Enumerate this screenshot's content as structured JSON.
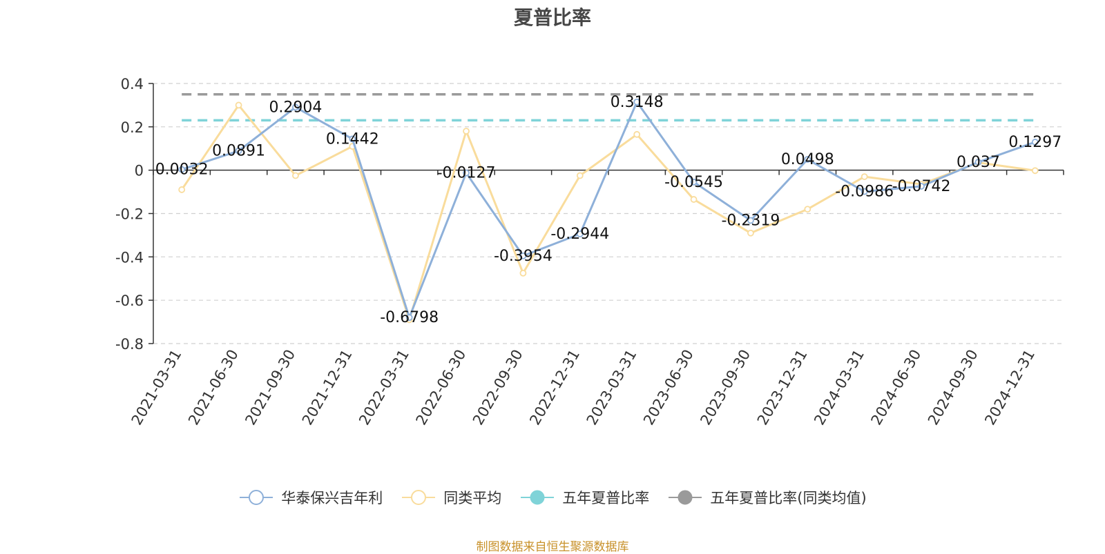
{
  "chart_data": {
    "type": "line",
    "title": "夏普比率",
    "categories": [
      "2021-03-31",
      "2021-06-30",
      "2021-09-30",
      "2021-12-31",
      "2022-03-31",
      "2022-06-30",
      "2022-09-30",
      "2022-12-31",
      "2023-03-31",
      "2023-06-30",
      "2023-09-30",
      "2023-12-31",
      "2024-03-31",
      "2024-06-30",
      "2024-09-30",
      "2024-12-31"
    ],
    "ylim": [
      -0.8,
      0.4
    ],
    "yticks": [
      0.4,
      0.2,
      0,
      -0.2,
      -0.4,
      -0.6,
      -0.8
    ],
    "ytick_labels": [
      "0.4",
      "0.2",
      "0",
      "-0.2",
      "-0.4",
      "-0.6",
      "-0.8"
    ],
    "grid": true,
    "legend_position": "bottom",
    "series": [
      {
        "name": "华泰保兴吉年利",
        "color": "#8eb0d9",
        "values": [
          0.0032,
          0.0891,
          0.2904,
          0.1442,
          -0.6798,
          -0.0127,
          -0.3954,
          -0.2944,
          0.3148,
          -0.0545,
          -0.2319,
          0.0498,
          -0.0986,
          -0.0742,
          0.037,
          0.1297
        ],
        "labels": [
          "0.0032",
          "0.0891",
          "0.2904",
          "0.1442",
          "-0.6798",
          "-0.0127",
          "-0.3954",
          "-0.2944",
          "0.3148",
          "-0.0545",
          "-0.2319",
          "0.0498",
          "-0.0986",
          "-0.0742",
          "0.037",
          "0.1297"
        ]
      },
      {
        "name": "同类平均",
        "color": "#f9dc9c",
        "values": [
          -0.09,
          0.3,
          -0.025,
          0.11,
          -0.69,
          0.18,
          -0.475,
          -0.025,
          0.165,
          -0.135,
          -0.29,
          -0.18,
          -0.03,
          -0.065,
          0.035,
          -0.002
        ]
      },
      {
        "name": "五年夏普比率",
        "color": "#7fd3d8",
        "type": "constant",
        "value": 0.23
      },
      {
        "name": "五年夏普比率(同类均值)",
        "color": "#9a9a9a",
        "type": "constant",
        "value": 0.35
      }
    ]
  },
  "source_note": "制图数据来自恒生聚源数据库"
}
